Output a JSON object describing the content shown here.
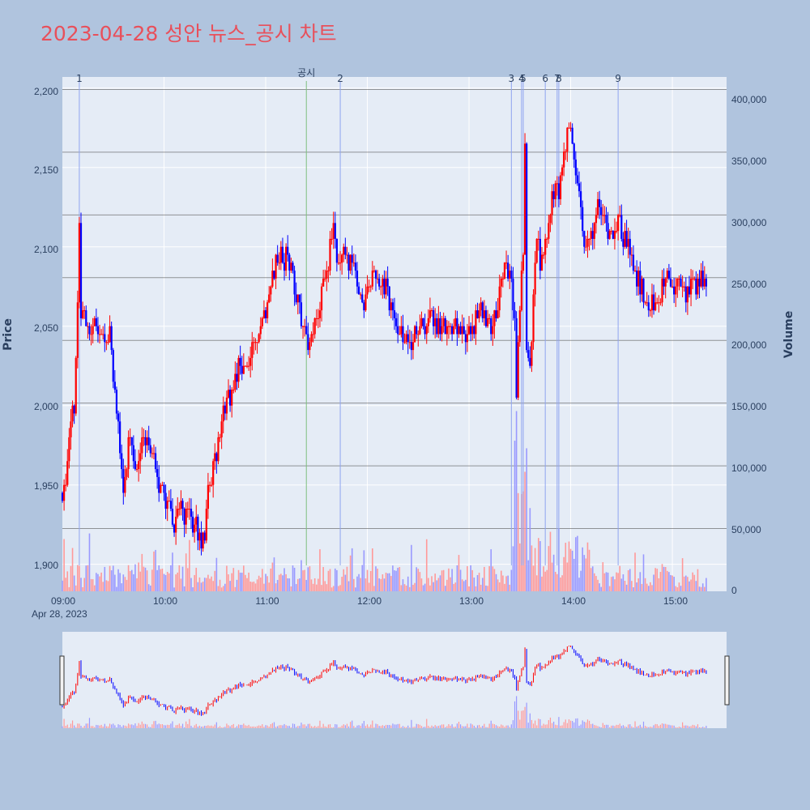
{
  "title": "2023-04-28 성안 뉴스_공시 차트",
  "colors": {
    "background": "#b0c4de",
    "plot_bg": "#e5ecf6",
    "title": "#e8505b",
    "up": "#ff0000",
    "down": "#0000ff",
    "vol_up": "#ff9999",
    "vol_down": "#9999ff",
    "news_line": "#8fa4f0",
    "disclosure_line": "#7fbf7f",
    "volume_grid": "#555555"
  },
  "chart_data": {
    "type": "candlestick",
    "title": "2023-04-28 성안 뉴스_공시 차트",
    "ylabel": "Price",
    "y2label": "Volume",
    "date_label": "Apr 28, 2023",
    "price_range": [
      1883,
      2207
    ],
    "volume_range": [
      0,
      410000
    ],
    "price_ticks": [
      "1,900",
      "1,950",
      "2,000",
      "2,050",
      "2,100",
      "2,150",
      "2,200"
    ],
    "volume_ticks": [
      "0",
      "50,000",
      "100,000",
      "150,000",
      "200,000",
      "250,000",
      "300,000",
      "350,000",
      "400,000"
    ],
    "x_ticks": [
      "09:00",
      "10:00",
      "11:00",
      "12:00",
      "13:00",
      "14:00",
      "15:00"
    ],
    "x_range": [
      "09:00",
      "15:32"
    ],
    "price_path": [
      [
        "09:00",
        1945
      ],
      [
        "09:03",
        1960
      ],
      [
        "09:05",
        1990
      ],
      [
        "09:07",
        2000
      ],
      [
        "09:08",
        2030
      ],
      [
        "09:09",
        2060
      ],
      [
        "09:10",
        2110
      ],
      [
        "09:11",
        2060
      ],
      [
        "09:13",
        2055
      ],
      [
        "09:16",
        2045
      ],
      [
        "09:20",
        2050
      ],
      [
        "09:25",
        2040
      ],
      [
        "09:28",
        2048
      ],
      [
        "09:30",
        2020
      ],
      [
        "09:32",
        1990
      ],
      [
        "09:34",
        1975
      ],
      [
        "09:36",
        1950
      ],
      [
        "09:38",
        1965
      ],
      [
        "09:40",
        1985
      ],
      [
        "09:43",
        1960
      ],
      [
        "09:46",
        1975
      ],
      [
        "09:50",
        1980
      ],
      [
        "09:53",
        1970
      ],
      [
        "09:56",
        1955
      ],
      [
        "10:00",
        1945
      ],
      [
        "10:03",
        1935
      ],
      [
        "10:06",
        1925
      ],
      [
        "10:10",
        1935
      ],
      [
        "10:15",
        1930
      ],
      [
        "10:18",
        1925
      ],
      [
        "10:22",
        1912
      ],
      [
        "10:24",
        1920
      ],
      [
        "10:26",
        1950
      ],
      [
        "10:30",
        1965
      ],
      [
        "10:33",
        1985
      ],
      [
        "10:36",
        2000
      ],
      [
        "10:40",
        2010
      ],
      [
        "10:43",
        2020
      ],
      [
        "10:46",
        2025
      ],
      [
        "10:50",
        2030
      ],
      [
        "10:55",
        2045
      ],
      [
        "11:00",
        2060
      ],
      [
        "11:04",
        2080
      ],
      [
        "11:07",
        2095
      ],
      [
        "11:10",
        2090
      ],
      [
        "11:13",
        2095
      ],
      [
        "11:16",
        2080
      ],
      [
        "11:18",
        2070
      ],
      [
        "11:20",
        2060
      ],
      [
        "11:22",
        2050
      ],
      [
        "11:25",
        2035
      ],
      [
        "11:28",
        2045
      ],
      [
        "11:31",
        2060
      ],
      [
        "11:34",
        2075
      ],
      [
        "11:37",
        2090
      ],
      [
        "11:40",
        2120
      ],
      [
        "11:42",
        2095
      ],
      [
        "11:44",
        2085
      ],
      [
        "11:47",
        2095
      ],
      [
        "11:51",
        2090
      ],
      [
        "11:54",
        2080
      ],
      [
        "11:58",
        2065
      ],
      [
        "12:01",
        2080
      ],
      [
        "12:04",
        2085
      ],
      [
        "12:08",
        2080
      ],
      [
        "12:12",
        2070
      ],
      [
        "12:16",
        2055
      ],
      [
        "12:20",
        2050
      ],
      [
        "12:25",
        2040
      ],
      [
        "12:30",
        2050
      ],
      [
        "12:38",
        2055
      ],
      [
        "12:45",
        2050
      ],
      [
        "12:52",
        2050
      ],
      [
        "13:00",
        2045
      ],
      [
        "13:05",
        2060
      ],
      [
        "13:10",
        2055
      ],
      [
        "13:15",
        2052
      ],
      [
        "13:20",
        2085
      ],
      [
        "13:24",
        2085
      ],
      [
        "13:27",
        2050
      ],
      [
        "13:28",
        2010
      ],
      [
        "13:30",
        2065
      ],
      [
        "13:32",
        2100
      ],
      [
        "13:33",
        2160
      ],
      [
        "13:34",
        2040
      ],
      [
        "13:36",
        2020
      ],
      [
        "13:38",
        2070
      ],
      [
        "13:40",
        2110
      ],
      [
        "13:42",
        2090
      ],
      [
        "13:45",
        2105
      ],
      [
        "13:48",
        2120
      ],
      [
        "13:51",
        2140
      ],
      [
        "13:53",
        2125
      ],
      [
        "13:56",
        2160
      ],
      [
        "13:58",
        2170
      ],
      [
        "14:00",
        2175
      ],
      [
        "14:03",
        2150
      ],
      [
        "14:06",
        2120
      ],
      [
        "14:08",
        2095
      ],
      [
        "14:10",
        2110
      ],
      [
        "14:13",
        2105
      ],
      [
        "14:16",
        2125
      ],
      [
        "14:19",
        2115
      ],
      [
        "14:22",
        2105
      ],
      [
        "14:25",
        2110
      ],
      [
        "14:28",
        2115
      ],
      [
        "14:31",
        2105
      ],
      [
        "14:34",
        2100
      ],
      [
        "14:37",
        2085
      ],
      [
        "14:40",
        2080
      ],
      [
        "14:43",
        2070
      ],
      [
        "14:46",
        2060
      ],
      [
        "14:50",
        2070
      ],
      [
        "14:54",
        2075
      ],
      [
        "14:57",
        2080
      ],
      [
        "15:01",
        2070
      ],
      [
        "15:05",
        2080
      ],
      [
        "15:09",
        2070
      ],
      [
        "15:13",
        2075
      ],
      [
        "15:17",
        2080
      ],
      [
        "15:20",
        2075
      ]
    ],
    "markers": [
      {
        "label": "1",
        "time": "09:10",
        "type": "news"
      },
      {
        "label": "공시",
        "time": "11:24",
        "type": "disclosure"
      },
      {
        "label": "2",
        "time": "11:44",
        "type": "news"
      },
      {
        "label": "3",
        "time": "13:25",
        "type": "news"
      },
      {
        "label": "4",
        "time": "13:31",
        "type": "news"
      },
      {
        "label": "5",
        "time": "13:32",
        "type": "news"
      },
      {
        "label": "6",
        "time": "13:45",
        "type": "news"
      },
      {
        "label": "7",
        "time": "13:52",
        "type": "news"
      },
      {
        "label": "8",
        "time": "13:53",
        "type": "news"
      },
      {
        "label": "9",
        "time": "14:28",
        "type": "news"
      }
    ]
  }
}
